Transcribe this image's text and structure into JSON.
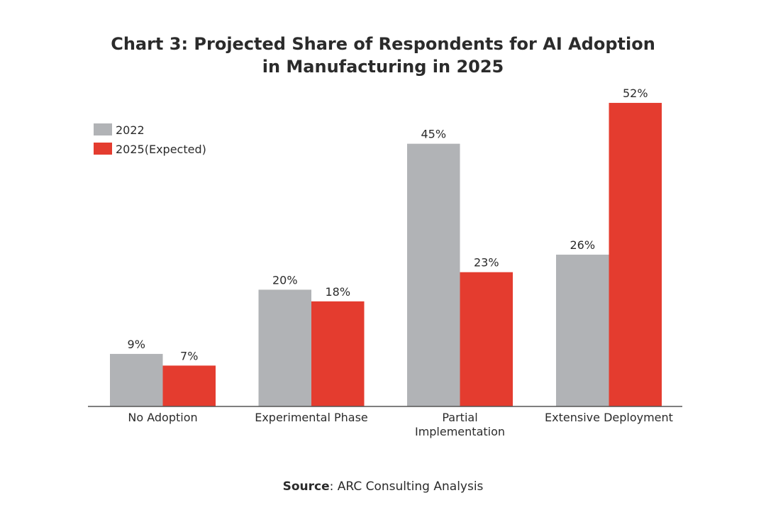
{
  "chart_data": {
    "type": "bar",
    "title_lines": [
      "Chart 3: Projected Share of Respondents for AI Adoption",
      "in Manufacturing in 2025"
    ],
    "categories": [
      [
        "No Adoption"
      ],
      [
        "Experimental Phase"
      ],
      [
        "Partial",
        "Implementation"
      ],
      [
        "Extensive Deployment"
      ]
    ],
    "series": [
      {
        "name": "2022",
        "values": [
          9,
          20,
          45,
          26
        ],
        "labels": [
          "9%",
          "20%",
          "45%",
          "26%"
        ],
        "color": "#b1b3b6"
      },
      {
        "name": "2025(Expected)",
        "values": [
          7,
          18,
          23,
          52
        ],
        "labels": [
          "7%",
          "18%",
          "23%",
          "52%"
        ],
        "color": "#e43c2f"
      }
    ],
    "xlabel": "",
    "ylabel": "",
    "legend": "top-left",
    "grid": false
  },
  "source": {
    "label": "Source",
    "text": ": ARC Consulting Analysis"
  }
}
